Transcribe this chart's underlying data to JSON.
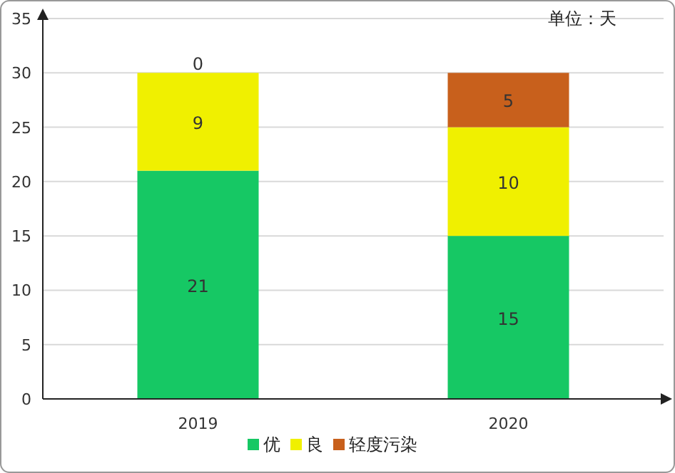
{
  "chart_data": {
    "type": "bar",
    "stacked": true,
    "categories": [
      "2019",
      "2020"
    ],
    "series": [
      {
        "name": "优",
        "color": "#16c864",
        "values": [
          21,
          15
        ]
      },
      {
        "name": "良",
        "color": "#f0f000",
        "values": [
          9,
          10
        ]
      },
      {
        "name": "轻度污染",
        "color": "#c8601c",
        "values": [
          0,
          5
        ]
      }
    ],
    "ylim": [
      0,
      35
    ],
    "yticks": [
      0,
      5,
      10,
      15,
      20,
      25,
      30,
      35
    ],
    "grid": "y",
    "legend": "bottom",
    "data_labels": true,
    "annotations": [
      "单位：天"
    ]
  }
}
